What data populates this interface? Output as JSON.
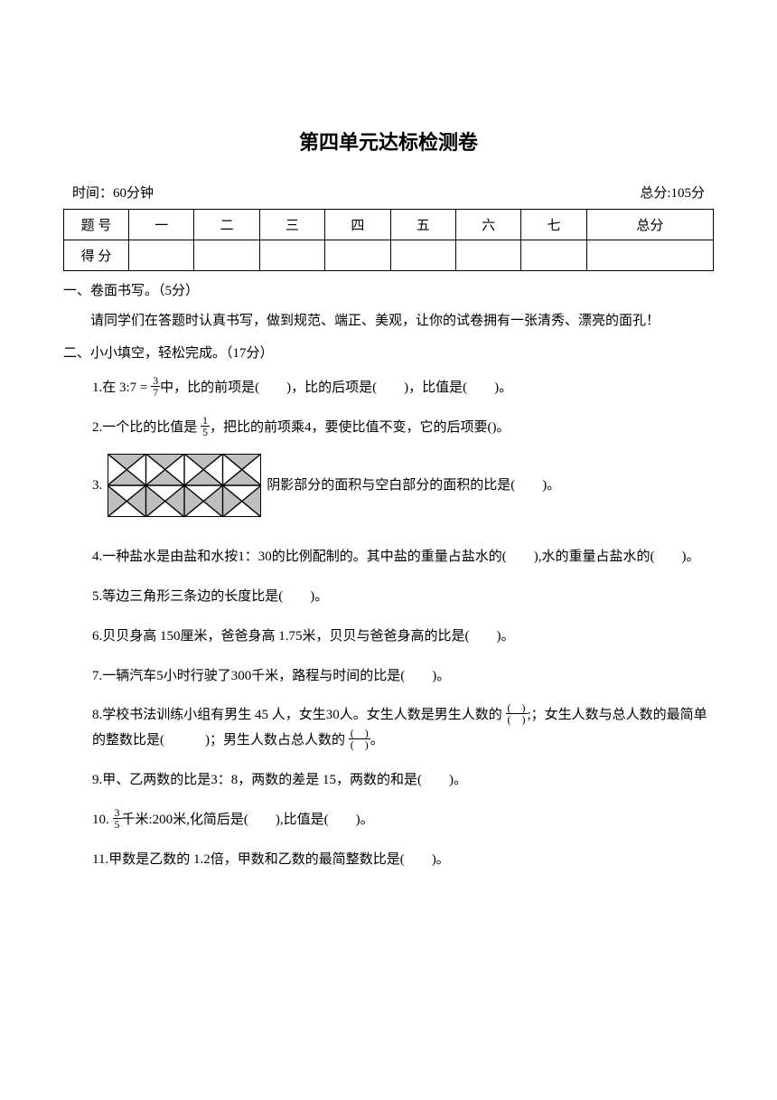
{
  "title": "第四单元达标检测卷",
  "meta": {
    "time": "时间：60分钟",
    "total": "总分:105分"
  },
  "score_table": {
    "row1_label": "题 号",
    "row2_label": "得 分",
    "cols": [
      "一",
      "二",
      "三",
      "四",
      "五",
      "六",
      "七",
      "总分"
    ]
  },
  "section1": {
    "heading": "一、卷面书写。（5分）",
    "text": "请同学们在答题时认真书写，做到规范、端正、美观，让你的试卷拥有一张清秀、漂亮的面孔！"
  },
  "section2": {
    "heading": "二、小小填空，轻松完成。（17分）",
    "q1_a": "1.在 3:7 = ",
    "q1_frac_num": "3",
    "q1_frac_den": "7",
    "q1_b": "中，比的前项是(　　)，比的后项是(　　)，比值是(　　)。",
    "q2_a": "2.一个比的比值是 ",
    "q2_frac_num": "1",
    "q2_frac_den": "5",
    "q2_b": "，把比的前项乘4，要使比值不变，它的后项要()。",
    "q3_a": "3.",
    "q3_b": "阴影部分的面积与空白部分的面积的比是(　　)。",
    "q4": "4.一种盐水是由盐和水按1：30的比例配制的。其中盐的重量占盐水的(　　),水的重量占盐水的(　　)。",
    "q5": "5.等边三角形三条边的长度比是(　　)。",
    "q6": "6.贝贝身高 150厘米，爸爸身高 1.75米，贝贝与爸爸身高的比是(　　)。",
    "q7": "7.一辆汽车5小时行驶了300千米，路程与时间的比是(　　)。",
    "q8_a": "8.学校书法训练小组有男生 45 人，女生30人。女生人数是男生人数的 ",
    "q8_frac1_num": "(　)",
    "q8_frac1_den": "(　)",
    "q8_b": ";；女生人数与总人数的最简单的整数比是(　　　)；男生人数占总人数的 ",
    "q8_frac2_num": "(　)",
    "q8_frac2_den": "(　)",
    "q8_c": "。",
    "q9": "9.甲、乙两数的比是3：8，两数的差是 15，两数的和是(　　)。",
    "q10_a": "10. ",
    "q10_frac_num": "3",
    "q10_frac_den": "5",
    "q10_b": "千米:200米,化简后是(　　),比值是(　　)。",
    "q11": "11.甲数是乙数的 1.2倍，甲数和乙数的最简整数比是(　　)。"
  },
  "diagram": {
    "width": 170,
    "height": 70,
    "cols": 4,
    "rows": 2,
    "fill": "#bfbfbf",
    "stroke": "#000000",
    "stroke_width": 1.4,
    "outer_stroke_width": 2.0
  }
}
